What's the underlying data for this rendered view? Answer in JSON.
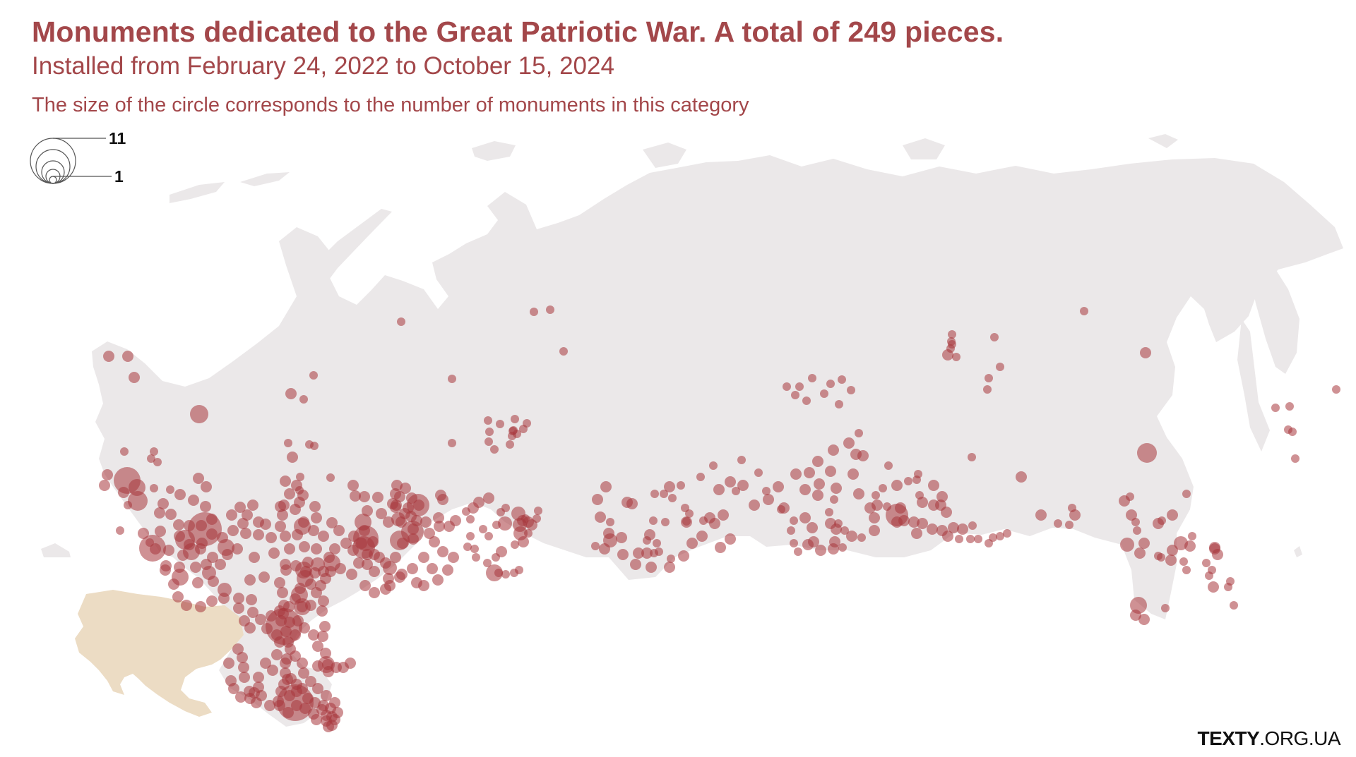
{
  "header": {
    "title": "Monuments dedicated to the Great Patriotic War. A total of 249 pieces.",
    "subtitle": "Installed from February 24, 2022 to October 15, 2024",
    "note": "The size of the circle corresponds to the number of monuments in this category"
  },
  "legend": {
    "max_value": "11",
    "min_value": "1"
  },
  "credit": {
    "brand": "TEXTY",
    "domain": ".ORG.UA"
  },
  "colors": {
    "russia_land": "#ebe8e9",
    "ukraine_land": "#ecdcc4",
    "marker": "#a8363d",
    "text_accent": "#a3474a"
  }
}
